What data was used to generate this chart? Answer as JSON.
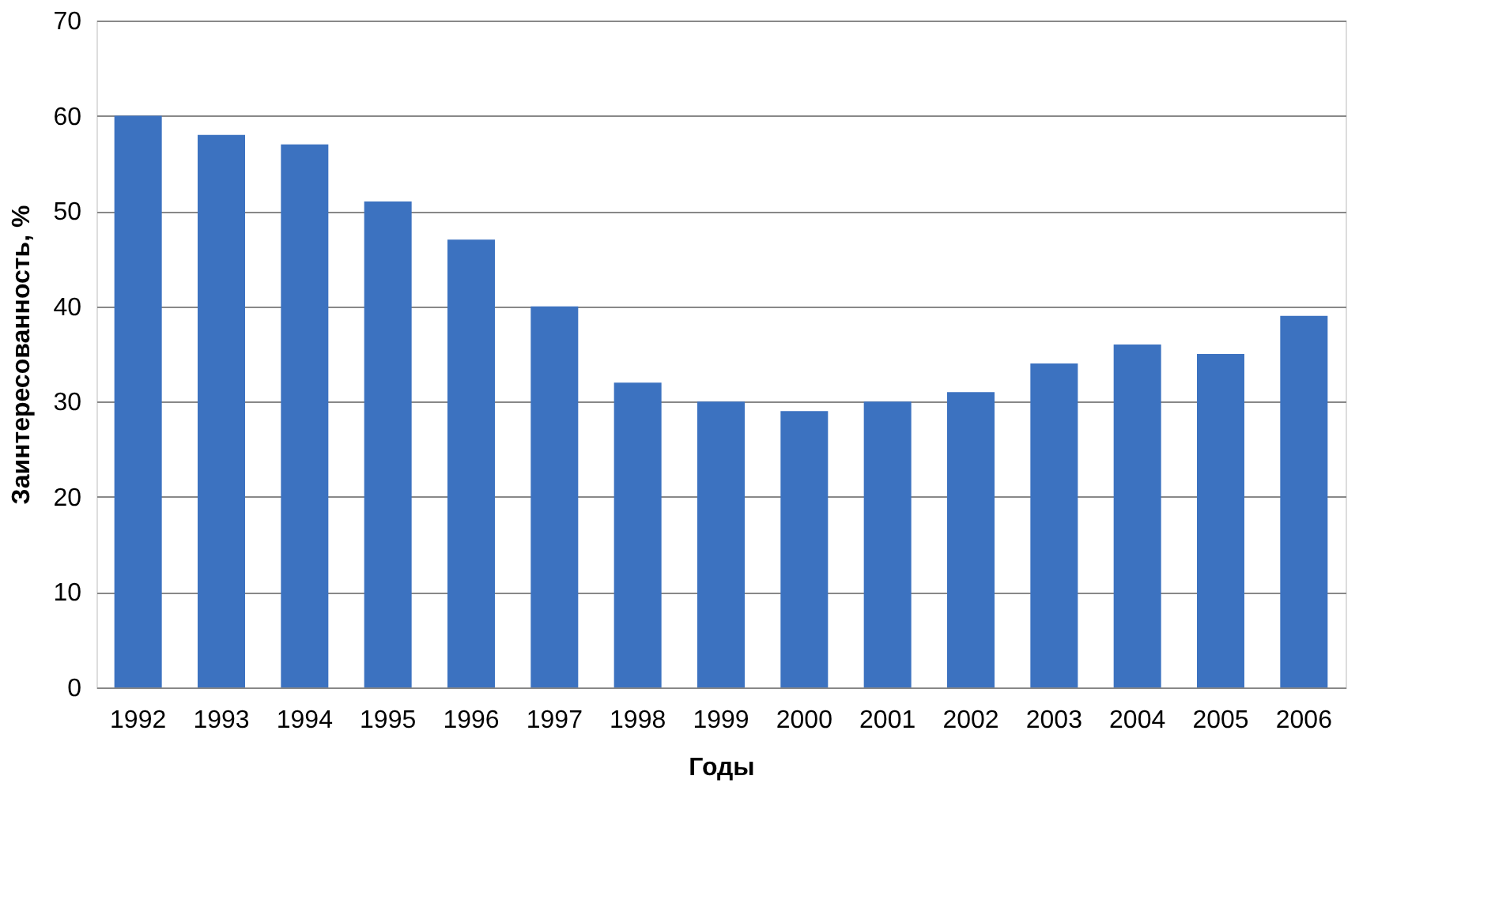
{
  "chart_data": {
    "type": "bar",
    "xlabel": "Годы",
    "ylabel": "Заинтересованность, %",
    "categories": [
      "1992",
      "1993",
      "1994",
      "1995",
      "1996",
      "1997",
      "1998",
      "1999",
      "2000",
      "2001",
      "2002",
      "2003",
      "2004",
      "2005",
      "2006"
    ],
    "values": [
      60,
      58,
      57,
      51,
      47,
      40,
      32,
      30,
      29,
      30,
      31,
      34,
      36,
      35,
      39
    ],
    "color": "#3c72c0",
    "ylim": [
      0,
      70
    ],
    "yticks": [
      0,
      10,
      20,
      30,
      40,
      50,
      60,
      70
    ],
    "grid": "y"
  }
}
